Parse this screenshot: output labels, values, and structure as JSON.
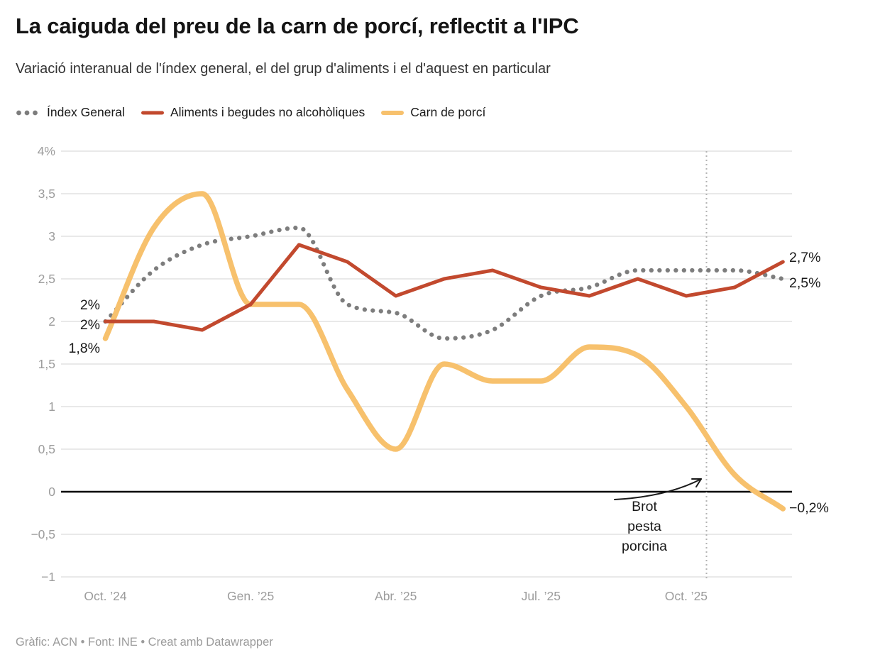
{
  "header": {
    "title": "La caiguda del preu de la carn de porcí, reflectit a l'IPC",
    "subtitle": "Variació interanual de l'índex general, el del grup d'aliments i el d'aquest en particular"
  },
  "chart_data": {
    "type": "line",
    "x": [
      "Oct. ’24",
      "Nov. ’24",
      "Des. ’24",
      "Gen. ’25",
      "Febr. ’25",
      "Març ’25",
      "Abr. ’25",
      "Maig ’25",
      "Juny ’25",
      "Jul. ’25",
      "Ag. ’25",
      "Set. ’25",
      "Oct. ’25",
      "Nov. ’25",
      "Des. ’25"
    ],
    "x_ticks": [
      {
        "index": 0,
        "label": "Oct. ’24"
      },
      {
        "index": 3,
        "label": "Gen. ’25"
      },
      {
        "index": 6,
        "label": "Abr. ’25"
      },
      {
        "index": 9,
        "label": "Jul. ’25"
      },
      {
        "index": 12,
        "label": "Oct. ’25"
      }
    ],
    "y_ticks": [
      {
        "v": 4,
        "label": "4%"
      },
      {
        "v": 3.5,
        "label": "3,5"
      },
      {
        "v": 3,
        "label": "3"
      },
      {
        "v": 2.5,
        "label": "2,5"
      },
      {
        "v": 2,
        "label": "2"
      },
      {
        "v": 1.5,
        "label": "1,5"
      },
      {
        "v": 1,
        "label": "1"
      },
      {
        "v": 0.5,
        "label": "0,5"
      },
      {
        "v": 0,
        "label": "0"
      },
      {
        "v": -0.5,
        "label": "−0,5"
      },
      {
        "v": -1,
        "label": "−1"
      }
    ],
    "ylim": [
      -1,
      4
    ],
    "grid": true,
    "legend_position": "top",
    "series": [
      {
        "name": "Índex General",
        "color": "#7d7d7d",
        "line_style": "dotted",
        "interpolation": "curved",
        "values": [
          2.0,
          2.6,
          2.9,
          3.0,
          3.1,
          2.2,
          2.1,
          1.8,
          1.9,
          2.3,
          2.4,
          2.6,
          2.6,
          2.6,
          2.5
        ],
        "start_label": "2%",
        "end_label": "2,5%"
      },
      {
        "name": "Aliments i begudes no alcohòliques",
        "color": "#c2492e",
        "line_style": "solid",
        "interpolation": "linear",
        "values": [
          2.0,
          2.0,
          1.9,
          2.2,
          2.9,
          2.7,
          2.3,
          2.5,
          2.6,
          2.4,
          2.3,
          2.5,
          2.3,
          2.4,
          2.7
        ],
        "start_label": "2%",
        "end_label": "2,7%"
      },
      {
        "name": "Carn de porcí",
        "color": "#f7c16d",
        "line_style": "solid_thick",
        "interpolation": "curved",
        "values": [
          1.8,
          3.1,
          3.5,
          2.2,
          2.2,
          1.2,
          0.5,
          1.5,
          1.3,
          1.3,
          1.7,
          1.6,
          1.0,
          0.2,
          -0.2
        ],
        "start_label": "1,8%",
        "end_label": "−0,2%"
      }
    ],
    "annotation": {
      "lines": [
        "Brot",
        "pesta",
        "porcina"
      ],
      "vline_x_index": 12.42
    }
  },
  "footer": {
    "credit": "Gràfic: ACN • Font: INE • Creat amb Datawrapper"
  },
  "colors": {
    "grid": "#dcdcdc",
    "zero_line": "#000000",
    "axis_text": "#9c9c9c",
    "annotation_line": "#b3b3b3",
    "annotation_text": "#1a1a1a"
  }
}
